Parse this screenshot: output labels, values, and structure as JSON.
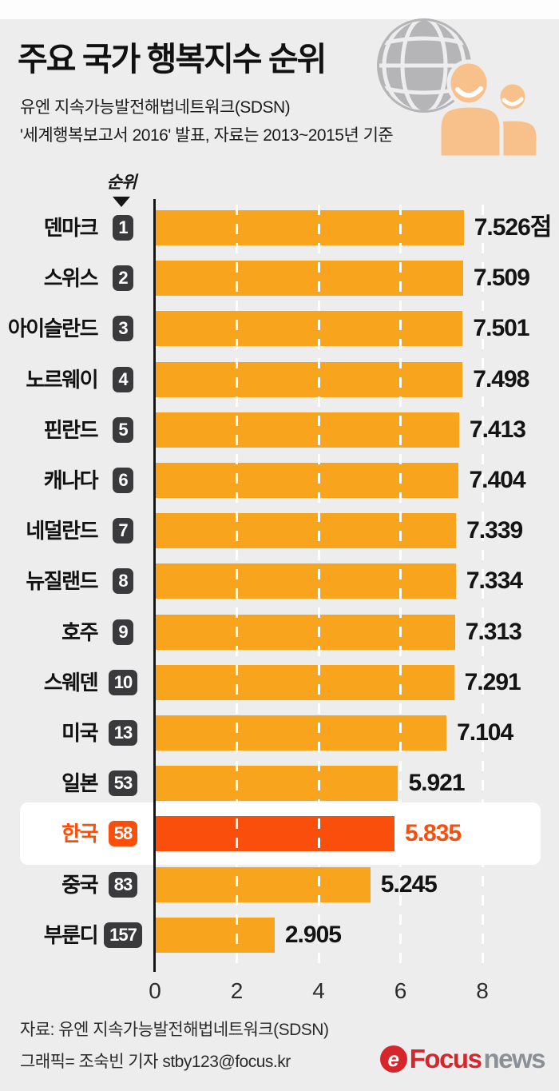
{
  "header": {
    "title_part1": "주요 국가 ",
    "title_part2": "행복지수",
    "title_part3": " 순위",
    "subtitle_line1": "유엔 지속가능발전해법네트워크(SDSN)",
    "subtitle_line2": "'세계행복보고서 2016' 발표, 자료는 2013~2015년 기준"
  },
  "chart_data": {
    "type": "bar",
    "orientation": "horizontal",
    "rank_header_label": "순위",
    "xlim": [
      0,
      8
    ],
    "x_ticks": [
      0,
      2,
      4,
      6,
      8
    ],
    "grid": "dashed-white-vertical",
    "value_unit_suffix_first_row": "점",
    "rows": [
      {
        "country": "덴마크",
        "rank": "1",
        "value": 7.526,
        "display": "7.526점",
        "highlight": false
      },
      {
        "country": "스위스",
        "rank": "2",
        "value": 7.509,
        "display": "7.509",
        "highlight": false
      },
      {
        "country": "아이슬란드",
        "rank": "3",
        "value": 7.501,
        "display": "7.501",
        "highlight": false
      },
      {
        "country": "노르웨이",
        "rank": "4",
        "value": 7.498,
        "display": "7.498",
        "highlight": false
      },
      {
        "country": "핀란드",
        "rank": "5",
        "value": 7.413,
        "display": "7.413",
        "highlight": false
      },
      {
        "country": "캐나다",
        "rank": "6",
        "value": 7.404,
        "display": "7.404",
        "highlight": false
      },
      {
        "country": "네덜란드",
        "rank": "7",
        "value": 7.339,
        "display": "7.339",
        "highlight": false
      },
      {
        "country": "뉴질랜드",
        "rank": "8",
        "value": 7.334,
        "display": "7.334",
        "highlight": false
      },
      {
        "country": "호주",
        "rank": "9",
        "value": 7.313,
        "display": "7.313",
        "highlight": false
      },
      {
        "country": "스웨덴",
        "rank": "10",
        "value": 7.291,
        "display": "7.291",
        "highlight": false
      },
      {
        "country": "미국",
        "rank": "13",
        "value": 7.104,
        "display": "7.104",
        "highlight": false
      },
      {
        "country": "일본",
        "rank": "53",
        "value": 5.921,
        "display": "5.921",
        "highlight": false
      },
      {
        "country": "한국",
        "rank": "58",
        "value": 5.835,
        "display": "5.835",
        "highlight": true
      },
      {
        "country": "중국",
        "rank": "83",
        "value": 5.245,
        "display": "5.245",
        "highlight": false
      },
      {
        "country": "부룬디",
        "rank": "157",
        "value": 2.905,
        "display": "2.905",
        "highlight": false
      }
    ],
    "colors": {
      "bar": "#f9a41d",
      "highlight_bar": "#fa4e0c",
      "badge": "#3a3a3c",
      "highlight_badge": "#fa4e0c",
      "highlight_text": "#fa4e0c",
      "background": "#ededed",
      "highlight_row_background": "#ffffff"
    }
  },
  "footer": {
    "source_line": "자료: 유엔 지속가능발전해법네트워크(SDSN)",
    "credit_line": "그래픽= 조숙빈 기자 stby123@focus.kr",
    "logo": {
      "icon_glyph": "e",
      "brand": "Focus",
      "suffix": "news",
      "brand_color": "#d6252b",
      "suffix_color": "#8a9096"
    }
  },
  "icons": {
    "globe": "globe-icon",
    "people": "people-icon",
    "rank_pointer": "triangle-down-icon"
  }
}
